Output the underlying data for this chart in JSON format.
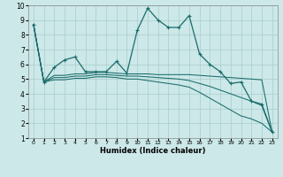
{
  "xlabel": "Humidex (Indice chaleur)",
  "xlim_min": -0.5,
  "xlim_max": 23.5,
  "ylim_min": 1,
  "ylim_max": 10,
  "xticks": [
    0,
    1,
    2,
    3,
    4,
    5,
    6,
    7,
    8,
    9,
    10,
    11,
    12,
    13,
    14,
    15,
    16,
    17,
    18,
    19,
    20,
    21,
    22,
    23
  ],
  "yticks": [
    1,
    2,
    3,
    4,
    5,
    6,
    7,
    8,
    9,
    10
  ],
  "bg_color": "#cce8e8",
  "grid_color": "#aacccc",
  "line_color": "#1a6b6b",
  "lines": [
    {
      "x": [
        0,
        1,
        2,
        3,
        4,
        5,
        6,
        7,
        8,
        9,
        10,
        11,
        12,
        13,
        14,
        15,
        16,
        17,
        18,
        19,
        20,
        21,
        22,
        23
      ],
      "y": [
        8.7,
        4.8,
        5.8,
        6.3,
        6.5,
        5.5,
        5.5,
        5.5,
        6.2,
        5.4,
        8.3,
        9.8,
        9.0,
        8.5,
        8.5,
        9.3,
        6.7,
        6.0,
        5.5,
        4.7,
        4.8,
        3.5,
        3.3,
        1.4
      ],
      "marker": true,
      "lw": 0.9
    },
    {
      "x": [
        0,
        1,
        2,
        3,
        4,
        5,
        6,
        7,
        8,
        9,
        10,
        11,
        12,
        13,
        14,
        15,
        16,
        17,
        18,
        19,
        20,
        21,
        22,
        23
      ],
      "y": [
        8.7,
        4.8,
        5.25,
        5.25,
        5.35,
        5.35,
        5.45,
        5.45,
        5.4,
        5.35,
        5.35,
        5.35,
        5.3,
        5.3,
        5.3,
        5.3,
        5.25,
        5.2,
        5.15,
        5.1,
        5.05,
        5.0,
        4.95,
        1.4
      ],
      "marker": false,
      "lw": 0.75
    },
    {
      "x": [
        0,
        1,
        2,
        3,
        4,
        5,
        6,
        7,
        8,
        9,
        10,
        11,
        12,
        13,
        14,
        15,
        16,
        17,
        18,
        19,
        20,
        21,
        22,
        23
      ],
      "y": [
        8.7,
        4.8,
        5.1,
        5.1,
        5.2,
        5.2,
        5.3,
        5.3,
        5.25,
        5.2,
        5.2,
        5.15,
        5.1,
        5.05,
        5.0,
        4.9,
        4.7,
        4.5,
        4.25,
        4.0,
        3.75,
        3.5,
        3.2,
        1.4
      ],
      "marker": false,
      "lw": 0.75
    },
    {
      "x": [
        0,
        1,
        2,
        3,
        4,
        5,
        6,
        7,
        8,
        9,
        10,
        11,
        12,
        13,
        14,
        15,
        16,
        17,
        18,
        19,
        20,
        21,
        22,
        23
      ],
      "y": [
        8.7,
        4.8,
        4.95,
        4.95,
        5.05,
        5.05,
        5.15,
        5.15,
        5.1,
        5.0,
        5.0,
        4.9,
        4.8,
        4.7,
        4.6,
        4.45,
        4.1,
        3.7,
        3.3,
        2.9,
        2.5,
        2.3,
        2.0,
        1.4
      ],
      "marker": false,
      "lw": 0.75
    }
  ]
}
